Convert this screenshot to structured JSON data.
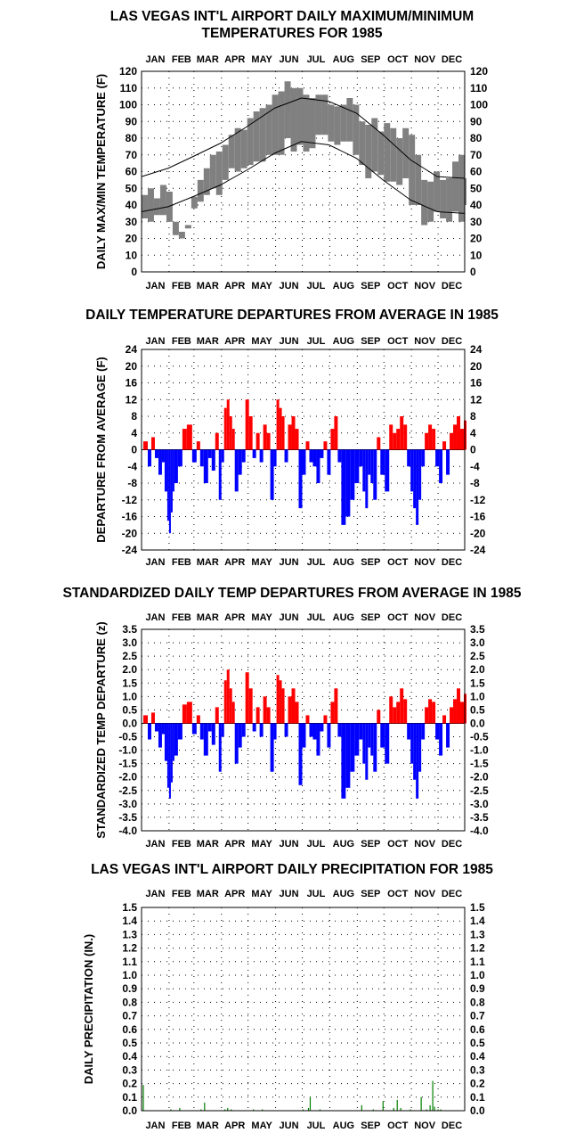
{
  "months": [
    "JAN",
    "FEB",
    "MAR",
    "APR",
    "MAY",
    "JUN",
    "JUL",
    "AUG",
    "SEP",
    "OCT",
    "NOV",
    "DEC"
  ],
  "colors": {
    "positive": "#ff0000",
    "negative": "#0000ff",
    "band": "#808080",
    "precip": "#008000",
    "grid": "#000000"
  },
  "chart_data": [
    {
      "type": "area",
      "title_line1": "LAS VEGAS INT'L AIRPORT DAILY MAXIMUM/MINIMUM",
      "title_line2": "TEMPERATURES FOR 1985",
      "ylabel": "DAILY MAX/MIN TEMPERATURE (F)",
      "ylim": [
        0,
        120
      ],
      "yticks": [
        0,
        10,
        20,
        30,
        40,
        50,
        60,
        70,
        80,
        90,
        100,
        110,
        120
      ],
      "grid": true,
      "series": [
        {
          "name": "",
          "x": [
            1,
            8,
            15,
            22,
            29,
            36,
            43,
            50,
            57,
            64,
            71,
            78,
            85,
            92,
            99,
            106,
            113,
            120,
            127,
            134,
            141,
            148,
            155,
            162,
            169,
            176,
            183,
            190,
            197,
            204,
            211,
            218,
            225,
            232,
            239,
            246,
            253,
            260,
            267,
            274,
            281,
            288,
            295,
            302,
            309,
            316,
            323,
            330,
            337,
            344,
            351,
            358,
            365
          ],
          "values": [
            46,
            50,
            44,
            52,
            48,
            30,
            24,
            28,
            45,
            55,
            62,
            70,
            72,
            76,
            82,
            86,
            85,
            92,
            96,
            98,
            100,
            106,
            108,
            114,
            110,
            110,
            106,
            104,
            106,
            106,
            100,
            99,
            100,
            104,
            100,
            90,
            88,
            92,
            84,
            89,
            86,
            80,
            86,
            82,
            70,
            55,
            54,
            60,
            55,
            56,
            66,
            70,
            56
          ]
        },
        {
          "name": "",
          "x": [
            1,
            8,
            15,
            22,
            29,
            36,
            43,
            50,
            57,
            64,
            71,
            78,
            85,
            92,
            99,
            106,
            113,
            120,
            127,
            134,
            141,
            148,
            155,
            162,
            169,
            176,
            183,
            190,
            197,
            204,
            211,
            218,
            225,
            232,
            239,
            246,
            253,
            260,
            267,
            274,
            281,
            288,
            295,
            302,
            309,
            316,
            323,
            330,
            337,
            344,
            351,
            358,
            365
          ],
          "values": [
            32,
            30,
            34,
            34,
            30,
            22,
            20,
            26,
            38,
            42,
            46,
            50,
            46,
            55,
            62,
            60,
            62,
            64,
            66,
            66,
            70,
            70,
            70,
            80,
            72,
            76,
            72,
            74,
            82,
            82,
            78,
            76,
            78,
            78,
            70,
            64,
            56,
            60,
            58,
            54,
            54,
            52,
            56,
            40,
            40,
            28,
            30,
            36,
            32,
            30,
            36,
            30,
            40
          ]
        },
        {
          "name": "",
          "x": [
            1,
            31,
            59,
            90,
            120,
            151,
            181,
            212,
            243,
            273,
            304,
            334,
            365
          ],
          "values": [
            57,
            62,
            69,
            77,
            87,
            98,
            104,
            102,
            95,
            82,
            67,
            57,
            56
          ]
        },
        {
          "name": "",
          "x": [
            1,
            31,
            59,
            90,
            120,
            151,
            181,
            212,
            243,
            273,
            304,
            334,
            365
          ],
          "values": [
            36,
            39,
            45,
            52,
            61,
            71,
            78,
            76,
            68,
            55,
            43,
            36,
            35
          ]
        }
      ]
    },
    {
      "type": "bar",
      "title": "DAILY TEMPERATURE DEPARTURES FROM AVERAGE IN 1985",
      "ylabel": "DEPARTURE FROM AVERAGE (F)",
      "ylim": [
        -24,
        24
      ],
      "yticks": [
        -24,
        -20,
        -16,
        -12,
        -8,
        -4,
        0,
        4,
        8,
        12,
        16,
        20,
        24
      ],
      "grid": true,
      "x": [
        3,
        8,
        12,
        16,
        20,
        24,
        27,
        30,
        32,
        34,
        36,
        38,
        42,
        47,
        52,
        58,
        63,
        67,
        71,
        76,
        80,
        84,
        88,
        91,
        94,
        97,
        100,
        103,
        106,
        110,
        114,
        118,
        122,
        126,
        130,
        134,
        138,
        142,
        146,
        150,
        153,
        156,
        159,
        162,
        166,
        170,
        174,
        178,
        182,
        186,
        190,
        194,
        198,
        202,
        206,
        210,
        214,
        218,
        222,
        226,
        231,
        236,
        241,
        246,
        250,
        253,
        256,
        259,
        262,
        266,
        270,
        275,
        280,
        284,
        288,
        292,
        296,
        300,
        304,
        307,
        310,
        313,
        316,
        320,
        324,
        328,
        332,
        336,
        340,
        344,
        348,
        352,
        356,
        360,
        364
      ],
      "values": [
        2,
        -4,
        3,
        -2,
        -6,
        -3,
        -10,
        -17,
        -20,
        -15,
        -10,
        -8,
        -4,
        5,
        6,
        -3,
        2,
        -4,
        -8,
        -2,
        -5,
        4,
        -12,
        -3,
        10,
        12,
        8,
        5,
        -10,
        -6,
        -3,
        12,
        8,
        -2,
        4,
        -3,
        6,
        4,
        -12,
        -4,
        12,
        10,
        8,
        -3,
        6,
        8,
        5,
        -14,
        -6,
        2,
        -3,
        -4,
        -8,
        -2,
        2,
        -6,
        5,
        8,
        -3,
        -18,
        -16,
        -12,
        -8,
        -4,
        -10,
        -14,
        -6,
        -8,
        -12,
        3,
        -6,
        -10,
        6,
        4,
        5,
        8,
        6,
        -4,
        -10,
        -14,
        -18,
        -12,
        -4,
        4,
        6,
        5,
        -4,
        -8,
        2,
        -6,
        4,
        6,
        8,
        5,
        7
      ]
    },
    {
      "type": "bar",
      "title": "STANDARDIZED DAILY TEMP DEPARTURES FROM AVERAGE IN 1985",
      "ylabel": "STANDARDIZED TEMP DEPARTURE",
      "yunit": "(z)",
      "ylim": [
        -4,
        3.5
      ],
      "yticks": [
        -4.0,
        -3.5,
        -3.0,
        -2.5,
        -2.0,
        -1.5,
        -1.0,
        -0.5,
        0.0,
        0.5,
        1.0,
        1.5,
        2.0,
        2.5,
        3.0,
        3.5
      ],
      "grid": true,
      "x": [
        3,
        8,
        12,
        16,
        20,
        24,
        27,
        30,
        32,
        34,
        36,
        38,
        42,
        47,
        52,
        58,
        63,
        67,
        71,
        76,
        80,
        84,
        88,
        91,
        94,
        97,
        100,
        103,
        106,
        110,
        114,
        118,
        122,
        126,
        130,
        134,
        138,
        142,
        146,
        150,
        153,
        156,
        159,
        162,
        166,
        170,
        174,
        178,
        182,
        186,
        190,
        194,
        198,
        202,
        206,
        210,
        214,
        218,
        222,
        226,
        231,
        236,
        241,
        246,
        250,
        253,
        256,
        259,
        262,
        266,
        270,
        275,
        280,
        284,
        288,
        292,
        296,
        300,
        304,
        307,
        310,
        313,
        316,
        320,
        324,
        328,
        332,
        336,
        340,
        344,
        348,
        352,
        356,
        360,
        364
      ],
      "values": [
        0.3,
        -0.6,
        0.4,
        -0.3,
        -0.9,
        -0.4,
        -1.4,
        -2.4,
        -2.8,
        -2.2,
        -1.4,
        -1.2,
        -0.6,
        0.7,
        0.8,
        -0.4,
        0.3,
        -0.6,
        -1.2,
        -0.3,
        -0.8,
        0.6,
        -1.8,
        -0.5,
        1.6,
        2.0,
        1.3,
        0.8,
        -1.5,
        -0.9,
        -0.5,
        1.9,
        1.3,
        -0.3,
        0.6,
        -0.5,
        1.0,
        0.6,
        -1.8,
        -0.6,
        1.8,
        1.6,
        1.3,
        -0.5,
        1.0,
        1.3,
        0.8,
        -2.3,
        -0.9,
        0.3,
        -0.5,
        -0.6,
        -1.2,
        -0.3,
        0.3,
        -0.9,
        0.8,
        1.3,
        -0.5,
        -2.8,
        -2.4,
        -1.8,
        -1.2,
        -0.6,
        -1.5,
        -2.1,
        -0.9,
        -1.2,
        -1.8,
        0.5,
        -0.9,
        -1.5,
        1.0,
        0.6,
        0.8,
        1.3,
        0.9,
        -0.6,
        -1.5,
        -2.1,
        -2.8,
        -1.8,
        -0.6,
        0.6,
        0.9,
        0.8,
        -0.6,
        -1.2,
        0.3,
        -0.9,
        0.6,
        0.9,
        1.3,
        0.8,
        1.1
      ]
    },
    {
      "type": "bar",
      "title": "LAS VEGAS INT'L AIRPORT DAILY PRECIPITATION FOR 1985",
      "ylabel": "DAILY PRECIPITATION (IN.)",
      "ylim": [
        0,
        1.5
      ],
      "yticks": [
        0.0,
        0.1,
        0.2,
        0.3,
        0.4,
        0.5,
        0.6,
        0.7,
        0.8,
        0.9,
        1.0,
        1.1,
        1.2,
        1.3,
        1.4,
        1.5
      ],
      "grid": true,
      "x": [
        3,
        34,
        44,
        68,
        72,
        95,
        98,
        102,
        127,
        137,
        183,
        189,
        191,
        202,
        249,
        262,
        273,
        285,
        289,
        293,
        304,
        316,
        322,
        326,
        329,
        331,
        335,
        338
      ],
      "values": [
        0.19,
        0.01,
        0.02,
        0.01,
        0.06,
        0.01,
        0.02,
        0.01,
        0.01,
        0.01,
        0.01,
        0.02,
        0.1,
        0.01,
        0.04,
        0.01,
        0.07,
        0.02,
        0.08,
        0.02,
        0.01,
        0.1,
        0.01,
        0.04,
        0.22,
        0.03,
        0.01,
        0.01
      ]
    }
  ]
}
